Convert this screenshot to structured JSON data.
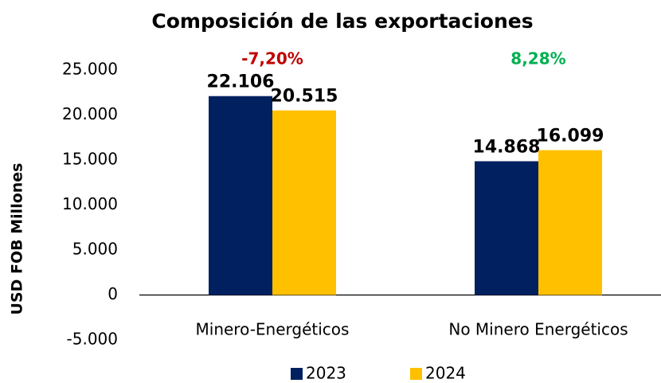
{
  "chart_data": {
    "type": "bar",
    "title": "Composición de las exportaciones",
    "y_axis_label": "USD FOB Millones",
    "categories": [
      "Minero-Energéticos",
      "No Minero Energéticos"
    ],
    "series": [
      {
        "name": "2023",
        "color": "#002060",
        "values": [
          22106,
          14868
        ],
        "value_labels": [
          "22.106",
          "14.868"
        ]
      },
      {
        "name": "2024",
        "color": "#ffc000",
        "values": [
          20515,
          16099
        ],
        "value_labels": [
          "20.515",
          "16.099"
        ]
      }
    ],
    "annotations": [
      {
        "text": "-7,20%",
        "color": "#c00000"
      },
      {
        "text": "8,28%",
        "color": "#00b050"
      }
    ],
    "ylim": [
      -5000,
      25000
    ],
    "yticks": [
      {
        "value": -5000,
        "label": "-5.000"
      },
      0,
      {
        "value": 5000,
        "label": "5.000"
      },
      {
        "value": 10000,
        "label": "10.000"
      },
      {
        "value": 15000,
        "label": "15.000"
      },
      {
        "value": 20000,
        "label": "20.000"
      },
      {
        "value": 25000,
        "label": "25.000"
      }
    ],
    "legend": "bottom"
  }
}
